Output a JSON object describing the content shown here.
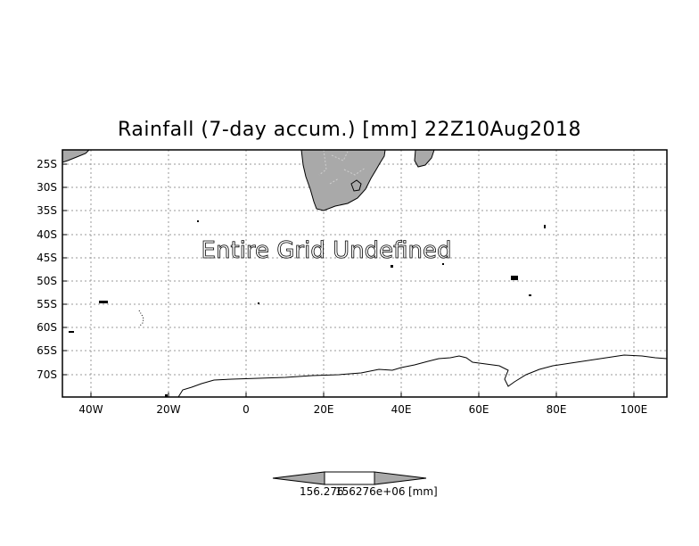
{
  "title": "Rainfall (7-day accum.) [mm] 22Z10Aug2018",
  "message": "Entire Grid Undefined",
  "y_ticks": [
    "25S",
    "30S",
    "35S",
    "40S",
    "45S",
    "50S",
    "55S",
    "60S",
    "65S",
    "70S"
  ],
  "x_ticks": [
    "40W",
    "20W",
    "0",
    "20E",
    "40E",
    "60E",
    "80E",
    "100E"
  ],
  "colorbar": {
    "value_label": "156.276",
    "overlap_label": "156276e+06",
    "unit_label": "[mm]"
  },
  "colors": {
    "land": "#a9a9a9",
    "grid": "#999999",
    "frame": "#000000"
  },
  "icons": [
    "colorbar-left-arrow",
    "colorbar-right-arrow"
  ]
}
